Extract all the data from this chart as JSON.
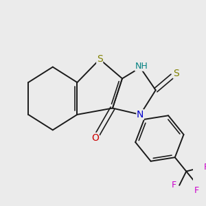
{
  "background_color": "#ebebeb",
  "bond_color": "#1a1a1a",
  "atom_colors": {
    "S_thio": "#808000",
    "S_thione": "#808000",
    "N": "#0000cc",
    "O": "#cc0000",
    "F": "#cc00cc",
    "NH": "#008080",
    "C": "#1a1a1a"
  },
  "figsize": [
    3.0,
    3.0
  ],
  "dpi": 100
}
